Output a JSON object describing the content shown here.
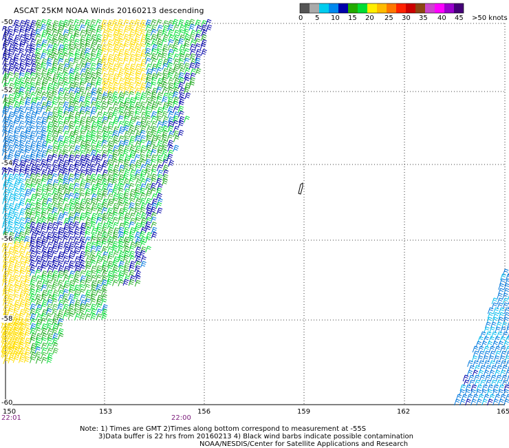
{
  "title": "ASCAT 25KM NOAA Winds 20160213 descending",
  "legend": {
    "colors": [
      "#555555",
      "#aaaaaa",
      "#00ccee",
      "#0088ee",
      "#0000aa",
      "#22aa00",
      "#00dd33",
      "#ffee00",
      "#ffbb00",
      "#ff7700",
      "#ff2200",
      "#cc0000",
      "#8b4513",
      "#cc44cc",
      "#ff00ff",
      "#9900cc",
      "#440077"
    ],
    "labels": [
      "0",
      "5",
      "10",
      "15",
      "20",
      "25",
      "30",
      "35",
      "40",
      "45",
      ">50 knots"
    ]
  },
  "axes": {
    "lon_labels": [
      "150",
      "153",
      "156",
      "159",
      "162",
      "165"
    ],
    "lat_labels": [
      "-50",
      "-52",
      "-54",
      "-56",
      "-58",
      "-60"
    ]
  },
  "times": [
    "22:01",
    "22:00"
  ],
  "notes": {
    "line1": "Note: 1) Times are GMT 2)Times along bottom correspond to measurement at -55S",
    "line2": "3)Data buffer is 22 hrs from 20160213 4) Black wind barbs indicate possible contamination",
    "line3": "NOAA/NESDIS/Center for Satellite Applications and Research"
  },
  "swath_colors": {
    "dark_blue": "#0000aa",
    "blue": "#0077dd",
    "light_blue": "#00bbee",
    "green": "#22aa22",
    "bright_green": "#00dd33",
    "yellow": "#ffdd00",
    "black": "#000000"
  }
}
